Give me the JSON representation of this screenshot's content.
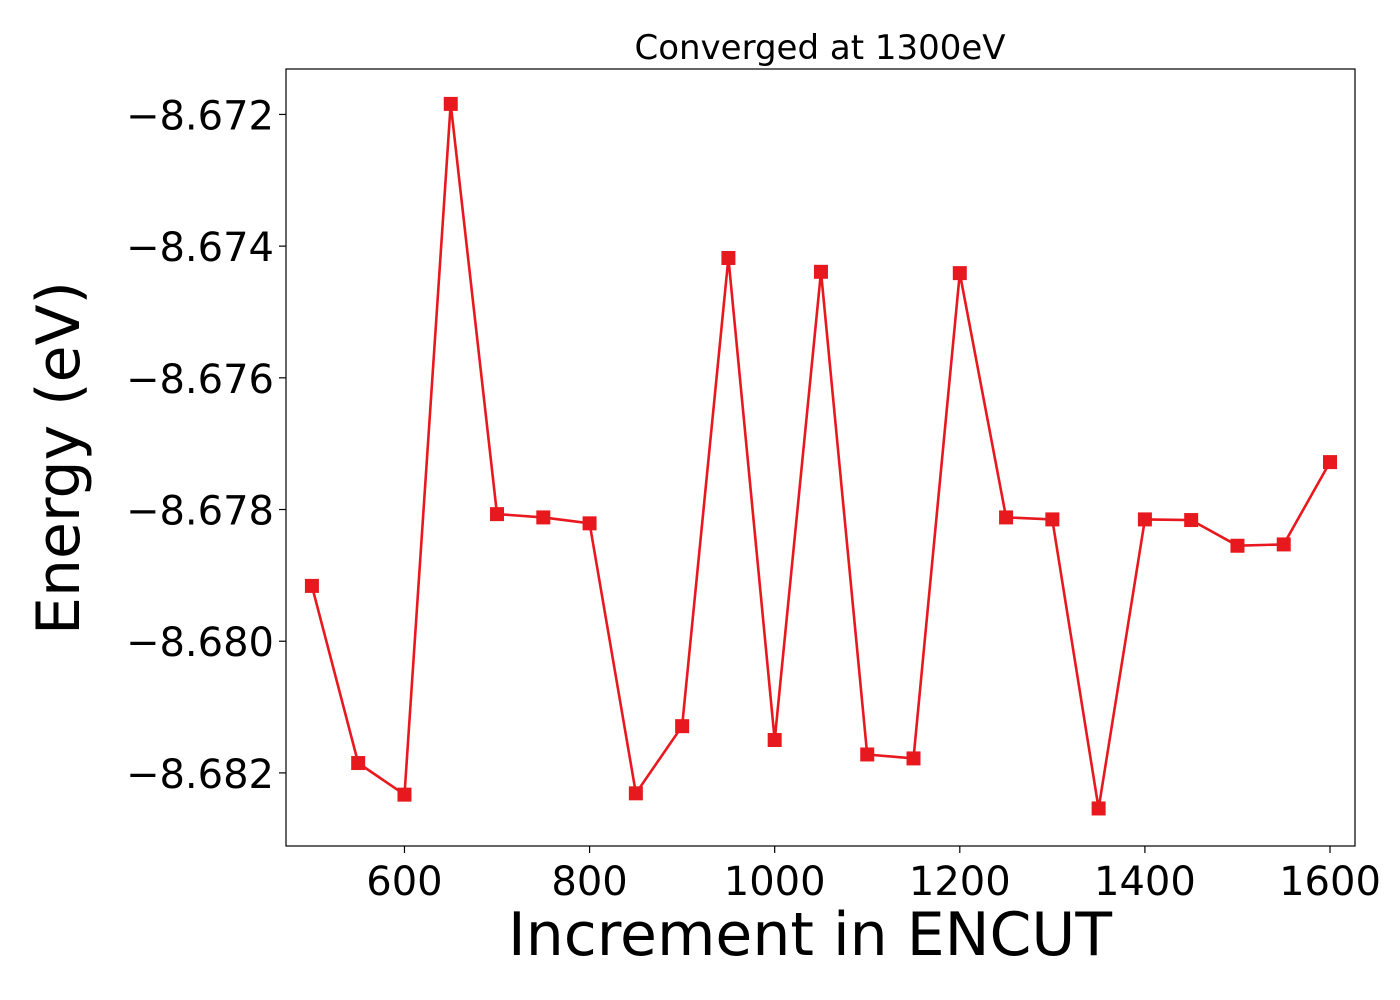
{
  "chart_data": {
    "type": "line",
    "title": "Converged at 1300eV",
    "xlabel": "Increment in ENCUT",
    "ylabel": "Energy (eV)",
    "xlim": [
      472,
      1627
    ],
    "ylim": [
      -8.68311,
      -8.67131
    ],
    "xticks": [
      600,
      800,
      1000,
      1200,
      1400,
      1600
    ],
    "xtick_labels": [
      "600",
      "800",
      "1000",
      "1200",
      "1400",
      "1600"
    ],
    "yticks": [
      -8.672,
      -8.674,
      -8.676,
      -8.678,
      -8.68,
      -8.682
    ],
    "ytick_labels": [
      "−8.672",
      "−8.674",
      "−8.676",
      "−8.678",
      "−8.680",
      "−8.682"
    ],
    "grid": false,
    "series": [
      {
        "color": "#e8191e",
        "marker": "square",
        "x": [
          500,
          550,
          600,
          650,
          700,
          750,
          800,
          850,
          900,
          950,
          1000,
          1050,
          1100,
          1150,
          1200,
          1250,
          1300,
          1350,
          1400,
          1450,
          1500,
          1550,
          1600
        ],
        "y": [
          -8.67916,
          -8.68185,
          -8.68233,
          -8.67184,
          -8.67807,
          -8.67812,
          -8.67821,
          -8.68231,
          -8.68129,
          -8.67418,
          -8.6815,
          -8.67439,
          -8.68172,
          -8.68178,
          -8.67441,
          -8.67812,
          -8.67815,
          -8.68254,
          -8.67815,
          -8.67816,
          -8.67855,
          -8.67853,
          -8.67728
        ]
      }
    ]
  }
}
